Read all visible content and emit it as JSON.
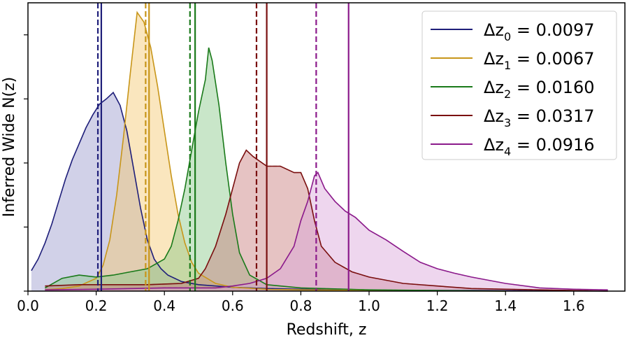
{
  "chart_data": {
    "type": "area",
    "xlabel": "Redshift, z",
    "ylabel": "Inferred Wide N(z)",
    "xlim": [
      0.0,
      1.75
    ],
    "ylim": [
      0,
      4.5
    ],
    "x_ticks": [
      "0.0",
      "0.2",
      "0.4",
      "0.6",
      "0.8",
      "1.0",
      "1.2",
      "1.4",
      "1.6"
    ],
    "y_tick_labels_shown": false,
    "legend_position": "top-right",
    "series": [
      {
        "name": "Δz̄0 = 0.0097",
        "label_main": "Δz",
        "label_sub": "0",
        "label_value": "= 0.0097",
        "color": "#1f1f7a",
        "fill": "#9999cc",
        "mean_dashed": 0.205,
        "mean_solid": 0.215,
        "points": [
          [
            0.01,
            0.32
          ],
          [
            0.03,
            0.5
          ],
          [
            0.05,
            0.75
          ],
          [
            0.07,
            1.05
          ],
          [
            0.09,
            1.4
          ],
          [
            0.11,
            1.75
          ],
          [
            0.13,
            2.05
          ],
          [
            0.15,
            2.3
          ],
          [
            0.17,
            2.55
          ],
          [
            0.19,
            2.75
          ],
          [
            0.21,
            2.92
          ],
          [
            0.23,
            3.0
          ],
          [
            0.25,
            3.1
          ],
          [
            0.27,
            2.9
          ],
          [
            0.29,
            2.5
          ],
          [
            0.31,
            1.9
          ],
          [
            0.33,
            1.3
          ],
          [
            0.35,
            0.8
          ],
          [
            0.37,
            0.5
          ],
          [
            0.39,
            0.35
          ],
          [
            0.41,
            0.25
          ],
          [
            0.45,
            0.15
          ],
          [
            0.5,
            0.1
          ],
          [
            0.6,
            0.06
          ],
          [
            0.7,
            0.04
          ],
          [
            0.8,
            0.03
          ],
          [
            0.9,
            0.02
          ],
          [
            1.0,
            0.01
          ],
          [
            1.3,
            0.01
          ],
          [
            1.7,
            0.0
          ]
        ]
      },
      {
        "name": "Δz̄1 = 0.0067",
        "label_main": "Δz",
        "label_sub": "1",
        "label_value": "= 0.0067",
        "color": "#c8961a",
        "fill": "#f5c86e",
        "mean_dashed": 0.345,
        "mean_solid": 0.355,
        "points": [
          [
            0.05,
            0.02
          ],
          [
            0.1,
            0.04
          ],
          [
            0.15,
            0.08
          ],
          [
            0.2,
            0.2
          ],
          [
            0.22,
            0.4
          ],
          [
            0.24,
            0.8
          ],
          [
            0.26,
            1.5
          ],
          [
            0.28,
            2.4
          ],
          [
            0.3,
            3.4
          ],
          [
            0.32,
            4.35
          ],
          [
            0.34,
            4.2
          ],
          [
            0.36,
            3.8
          ],
          [
            0.38,
            3.2
          ],
          [
            0.4,
            2.5
          ],
          [
            0.42,
            1.8
          ],
          [
            0.44,
            1.2
          ],
          [
            0.46,
            0.75
          ],
          [
            0.48,
            0.45
          ],
          [
            0.5,
            0.28
          ],
          [
            0.55,
            0.12
          ],
          [
            0.6,
            0.06
          ],
          [
            0.7,
            0.03
          ],
          [
            0.8,
            0.02
          ],
          [
            1.0,
            0.01
          ],
          [
            1.4,
            0.0
          ]
        ]
      },
      {
        "name": "Δz̄2 = 0.0160",
        "label_main": "Δz",
        "label_sub": "2",
        "label_value": "= 0.0160",
        "color": "#1a7a1a",
        "fill": "#88c888",
        "mean_dashed": 0.475,
        "mean_solid": 0.49,
        "points": [
          [
            0.05,
            0.05
          ],
          [
            0.1,
            0.2
          ],
          [
            0.15,
            0.25
          ],
          [
            0.2,
            0.22
          ],
          [
            0.25,
            0.25
          ],
          [
            0.3,
            0.3
          ],
          [
            0.35,
            0.35
          ],
          [
            0.4,
            0.5
          ],
          [
            0.42,
            0.7
          ],
          [
            0.44,
            1.1
          ],
          [
            0.46,
            1.6
          ],
          [
            0.48,
            2.2
          ],
          [
            0.5,
            2.8
          ],
          [
            0.52,
            3.3
          ],
          [
            0.53,
            3.8
          ],
          [
            0.54,
            3.6
          ],
          [
            0.56,
            2.9
          ],
          [
            0.58,
            2.0
          ],
          [
            0.6,
            1.2
          ],
          [
            0.62,
            0.6
          ],
          [
            0.65,
            0.25
          ],
          [
            0.7,
            0.1
          ],
          [
            0.8,
            0.05
          ],
          [
            1.0,
            0.02
          ],
          [
            1.4,
            0.0
          ]
        ]
      },
      {
        "name": "Δz̄3 = 0.0317",
        "label_main": "Δz",
        "label_sub": "3",
        "label_value": "= 0.0317",
        "color": "#7a0f0f",
        "fill": "#c87a7a",
        "mean_dashed": 0.67,
        "mean_solid": 0.7,
        "points": [
          [
            0.05,
            0.08
          ],
          [
            0.15,
            0.1
          ],
          [
            0.25,
            0.1
          ],
          [
            0.35,
            0.1
          ],
          [
            0.45,
            0.12
          ],
          [
            0.5,
            0.2
          ],
          [
            0.52,
            0.35
          ],
          [
            0.55,
            0.7
          ],
          [
            0.58,
            1.2
          ],
          [
            0.6,
            1.6
          ],
          [
            0.62,
            2.0
          ],
          [
            0.64,
            2.2
          ],
          [
            0.66,
            2.1
          ],
          [
            0.7,
            1.95
          ],
          [
            0.74,
            1.95
          ],
          [
            0.78,
            1.85
          ],
          [
            0.8,
            1.85
          ],
          [
            0.82,
            1.6
          ],
          [
            0.84,
            1.1
          ],
          [
            0.86,
            0.7
          ],
          [
            0.9,
            0.45
          ],
          [
            0.95,
            0.3
          ],
          [
            1.0,
            0.22
          ],
          [
            1.1,
            0.12
          ],
          [
            1.2,
            0.08
          ],
          [
            1.3,
            0.04
          ],
          [
            1.5,
            0.02
          ],
          [
            1.7,
            0.0
          ]
        ]
      },
      {
        "name": "Δz̄4 = 0.0916",
        "label_main": "Δz",
        "label_sub": "4",
        "label_value": "= 0.0916",
        "color": "#8b1a8b",
        "fill": "#d9a3d9",
        "mean_dashed": 0.845,
        "mean_solid": 0.94,
        "points": [
          [
            0.05,
            0.02
          ],
          [
            0.2,
            0.03
          ],
          [
            0.4,
            0.05
          ],
          [
            0.55,
            0.05
          ],
          [
            0.6,
            0.08
          ],
          [
            0.65,
            0.12
          ],
          [
            0.7,
            0.2
          ],
          [
            0.74,
            0.35
          ],
          [
            0.78,
            0.7
          ],
          [
            0.8,
            1.1
          ],
          [
            0.82,
            1.4
          ],
          [
            0.84,
            1.8
          ],
          [
            0.85,
            1.85
          ],
          [
            0.87,
            1.6
          ],
          [
            0.9,
            1.4
          ],
          [
            0.93,
            1.25
          ],
          [
            0.96,
            1.15
          ],
          [
            1.0,
            0.95
          ],
          [
            1.05,
            0.8
          ],
          [
            1.1,
            0.62
          ],
          [
            1.15,
            0.45
          ],
          [
            1.2,
            0.35
          ],
          [
            1.25,
            0.28
          ],
          [
            1.3,
            0.22
          ],
          [
            1.4,
            0.12
          ],
          [
            1.5,
            0.05
          ],
          [
            1.6,
            0.03
          ],
          [
            1.7,
            0.02
          ]
        ]
      }
    ]
  }
}
